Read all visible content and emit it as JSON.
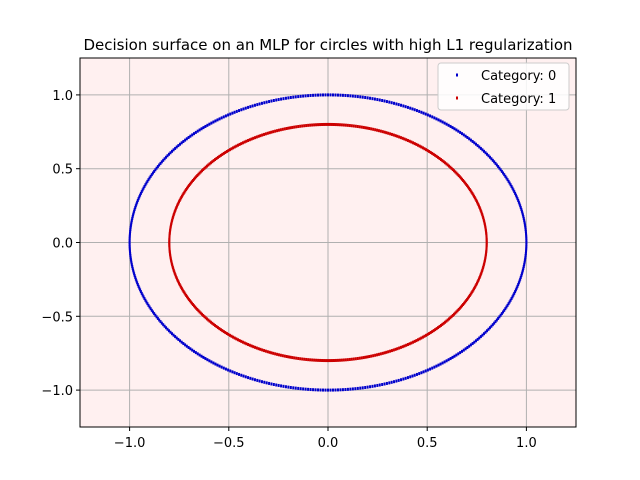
{
  "chart_data": {
    "type": "scatter",
    "title": "Decision surface on an MLP for circles with high L1 regularization",
    "xlabel": "",
    "ylabel": "",
    "xlim": [
      -1.25,
      1.25
    ],
    "ylim": [
      -1.25,
      1.25
    ],
    "grid": true,
    "background_color": "#fff0f0",
    "xticks": [
      -1.0,
      -0.5,
      0.0,
      0.5,
      1.0
    ],
    "yticks": [
      -1.0,
      -0.5,
      0.0,
      0.5,
      1.0
    ],
    "xtick_labels": [
      "−1.0",
      "−0.5",
      "0.0",
      "0.5",
      "1.0"
    ],
    "ytick_labels": [
      "−1.0",
      "−0.5",
      "0.0",
      "0.5",
      "1.0"
    ],
    "legend_position": "upper right",
    "series": [
      {
        "name": "Category: 0",
        "label": "Category: 0",
        "color": "#0000cc",
        "shape": "circle",
        "radius": 1.0,
        "n_points": 500
      },
      {
        "name": "Category: 1",
        "label": "Category: 1",
        "color": "#cc0000",
        "shape": "circle",
        "radius": 0.8,
        "n_points": 500
      }
    ]
  }
}
